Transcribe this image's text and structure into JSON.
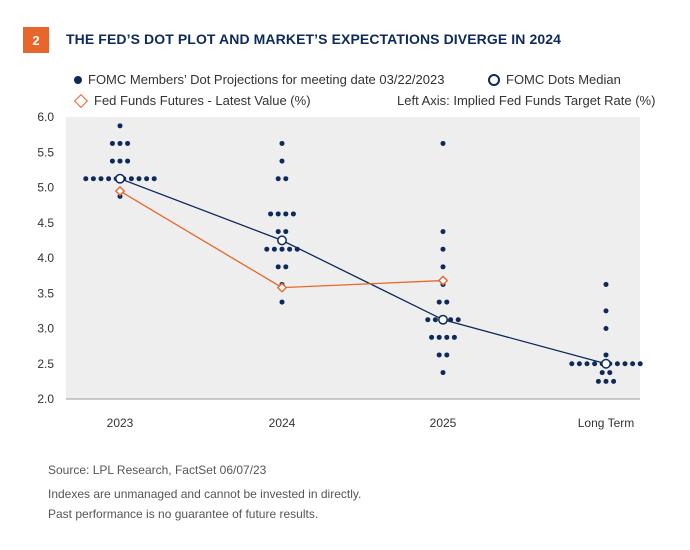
{
  "header": {
    "badge": "2",
    "title": "THE FED’S DOT PLOT AND MARKET’S EXPECTATIONS DIVERGE IN 2024"
  },
  "legend": {
    "dots": "FOMC Members’ Dot Projections for meeting date 03/22/2023",
    "median": "FOMC Dots Median",
    "futures": "Fed Funds Futures - Latest Value (%)",
    "axis_note": "Left Axis: Implied Fed Funds Target Rate (%)"
  },
  "footer": {
    "source": "Source: LPL Research, FactSet  06/07/23",
    "disclaimer1": "Indexes are unmanaged and cannot be invested in directly.",
    "disclaimer2": "Past performance is no guarantee of future results."
  },
  "colors": {
    "navy": "#0d2a5b",
    "orange": "#e8662b",
    "plot_bg": "#eeeeee"
  },
  "chart_data": {
    "type": "scatter",
    "categories": [
      "2023",
      "2024",
      "2025",
      "Long Term"
    ],
    "ylim": [
      2.0,
      6.0
    ],
    "yticks": [
      2.0,
      2.5,
      3.0,
      3.5,
      4.0,
      4.5,
      5.0,
      5.5,
      6.0
    ],
    "series": [
      {
        "name": "FOMC Members’ Dot Projections for meeting date 03/22/2023",
        "dots": [
          [
            {
              "value": 5.875,
              "count": 1
            },
            {
              "value": 5.625,
              "count": 3
            },
            {
              "value": 5.375,
              "count": 3
            },
            {
              "value": 5.125,
              "count": 10
            },
            {
              "value": 4.875,
              "count": 1
            }
          ],
          [
            {
              "value": 5.625,
              "count": 1
            },
            {
              "value": 5.375,
              "count": 1
            },
            {
              "value": 5.125,
              "count": 2
            },
            {
              "value": 4.625,
              "count": 4
            },
            {
              "value": 4.375,
              "count": 2
            },
            {
              "value": 4.125,
              "count": 5
            },
            {
              "value": 3.875,
              "count": 2
            },
            {
              "value": 3.625,
              "count": 1
            },
            {
              "value": 3.375,
              "count": 1
            }
          ],
          [
            {
              "value": 5.625,
              "count": 1
            },
            {
              "value": 4.375,
              "count": 1
            },
            {
              "value": 4.125,
              "count": 1
            },
            {
              "value": 3.875,
              "count": 1
            },
            {
              "value": 3.625,
              "count": 1
            },
            {
              "value": 3.375,
              "count": 2
            },
            {
              "value": 3.125,
              "count": 5
            },
            {
              "value": 2.875,
              "count": 4
            },
            {
              "value": 2.625,
              "count": 2
            },
            {
              "value": 2.375,
              "count": 1
            }
          ],
          [
            {
              "value": 3.625,
              "count": 1
            },
            {
              "value": 3.25,
              "count": 1
            },
            {
              "value": 3.0,
              "count": 1
            },
            {
              "value": 2.625,
              "count": 1
            },
            {
              "value": 2.5,
              "count": 10
            },
            {
              "value": 2.375,
              "count": 2
            },
            {
              "value": 2.25,
              "count": 3
            }
          ]
        ]
      },
      {
        "name": "FOMC Dots Median",
        "values": [
          5.125,
          4.25,
          3.125,
          2.5
        ]
      },
      {
        "name": "Fed Funds Futures - Latest Value (%)",
        "values": [
          4.95,
          3.58,
          3.68
        ]
      }
    ]
  }
}
